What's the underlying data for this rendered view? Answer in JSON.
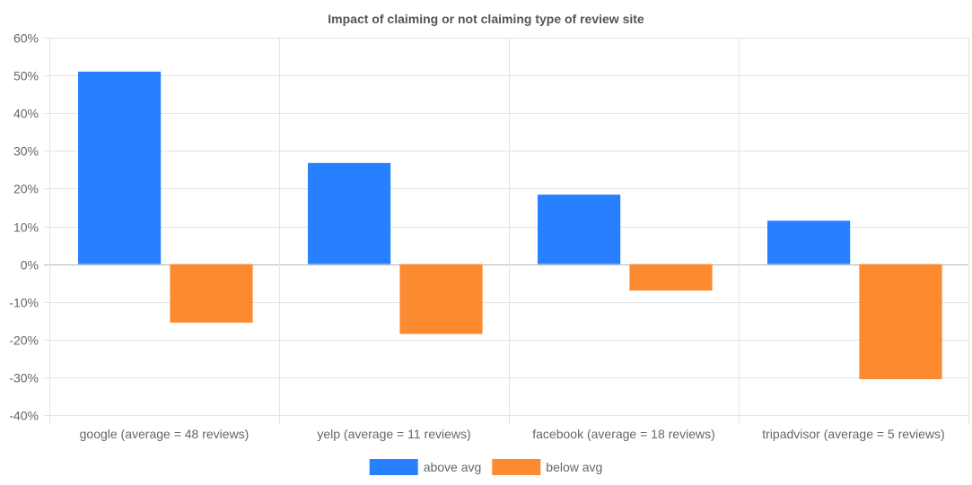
{
  "chart_data": {
    "type": "bar",
    "title": "Impact of claiming or not claiming type of review site",
    "xlabel": "",
    "ylabel": "",
    "ylim": [
      -40,
      60
    ],
    "y_ticks": [
      "60%",
      "50%",
      "40%",
      "30%",
      "20%",
      "10%",
      "0%",
      "-10%",
      "-20%",
      "-30%",
      "-40%"
    ],
    "y_unit": "%",
    "grid": true,
    "legend_position": "bottom",
    "categories": [
      "google (average = 48 reviews)",
      "yelp (average = 11 reviews)",
      "facebook (average = 18 reviews)",
      "tripadvisor (average = 5 reviews)"
    ],
    "series": [
      {
        "name": "above avg",
        "color": "#2680ff",
        "values": [
          51,
          26.8,
          18.4,
          11.5
        ]
      },
      {
        "name": "below avg",
        "color": "#fc8a30",
        "values": [
          -15.5,
          -18.5,
          -7,
          -30.5
        ]
      }
    ]
  }
}
